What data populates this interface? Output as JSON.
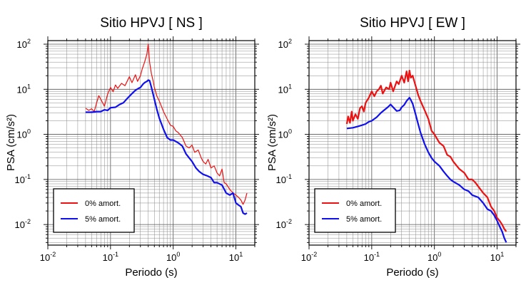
{
  "charts": [
    {
      "title": "Sitio HPVJ [ NS ]",
      "xlabel": "Periodo (s)",
      "ylabel": "PSA (cm/s²)"
    },
    {
      "title": "Sitio HPVJ [ EW ]",
      "xlabel": "Periodo (s)",
      "ylabel": "PSA (cm/s²)"
    }
  ],
  "chart_data": [
    {
      "type": "line",
      "title": "Sitio HPVJ [ NS ]",
      "xlabel": "Periodo (s)",
      "ylabel": "PSA (cm/s²)",
      "xscale": "log",
      "yscale": "log",
      "xlim": [
        0.01,
        20
      ],
      "ylim": [
        0.0035,
        120
      ],
      "grid": true,
      "legend_position": "bottom-left",
      "x_ticks": [
        "10-2",
        "10-1",
        "100",
        "101"
      ],
      "y_ticks": [
        "10-2",
        "10-1",
        "100",
        "101",
        "102"
      ],
      "series": [
        {
          "name": "0% amort.",
          "color": "#ee1111",
          "width": 1.2,
          "x": [
            0.04,
            0.045,
            0.05,
            0.055,
            0.06,
            0.065,
            0.07,
            0.08,
            0.09,
            0.1,
            0.11,
            0.12,
            0.13,
            0.15,
            0.17,
            0.2,
            0.22,
            0.25,
            0.27,
            0.3,
            0.32,
            0.35,
            0.38,
            0.4,
            0.42,
            0.45,
            0.48,
            0.5,
            0.55,
            0.6,
            0.7,
            0.8,
            0.9,
            1.0,
            1.1,
            1.2,
            1.4,
            1.6,
            1.8,
            2.0,
            2.2,
            2.5,
            2.8,
            3.0,
            3.3,
            3.6,
            4.0,
            4.5,
            5.0,
            5.5,
            6.0,
            6.5,
            7.0,
            8.0,
            9.0,
            10.0,
            11.0,
            12.0,
            13.0,
            14.0,
            15.0
          ],
          "y": [
            3.8,
            3.4,
            3.7,
            3.2,
            5.0,
            7.2,
            6.0,
            4.2,
            7.8,
            11.0,
            8.8,
            12.5,
            10.5,
            13.5,
            12.0,
            19.0,
            14.0,
            21.0,
            15.0,
            20.0,
            28.0,
            40.0,
            60.0,
            100.0,
            40.0,
            22.0,
            15.0,
            11.0,
            7.0,
            5.5,
            3.2,
            2.2,
            1.6,
            1.5,
            1.2,
            1.1,
            0.85,
            0.55,
            0.5,
            0.58,
            0.4,
            0.45,
            0.3,
            0.25,
            0.22,
            0.28,
            0.18,
            0.2,
            0.14,
            0.12,
            0.17,
            0.085,
            0.08,
            0.06,
            0.05,
            0.045,
            0.04,
            0.035,
            0.028,
            0.035,
            0.05
          ]
        },
        {
          "name": "5% amort.",
          "color": "#1010ee",
          "width": 2.2,
          "x": [
            0.04,
            0.05,
            0.06,
            0.07,
            0.08,
            0.09,
            0.1,
            0.12,
            0.14,
            0.16,
            0.18,
            0.2,
            0.22,
            0.25,
            0.28,
            0.3,
            0.33,
            0.35,
            0.38,
            0.4,
            0.42,
            0.45,
            0.5,
            0.55,
            0.6,
            0.7,
            0.8,
            0.9,
            1.0,
            1.2,
            1.4,
            1.6,
            1.8,
            2.0,
            2.3,
            2.6,
            3.0,
            3.5,
            4.0,
            4.5,
            5.0,
            6.0,
            7.0,
            8.0,
            9.0,
            10.0,
            11.0,
            12.0,
            13.0,
            14.0,
            15.0
          ],
          "y": [
            3.1,
            3.1,
            3.2,
            3.2,
            3.5,
            3.4,
            3.9,
            4.0,
            4.6,
            5.0,
            6.0,
            7.0,
            8.0,
            9.5,
            10.5,
            11.0,
            13.0,
            14.0,
            15.0,
            16.0,
            15.5,
            11.0,
            6.0,
            3.5,
            2.3,
            1.3,
            0.85,
            0.75,
            0.75,
            0.65,
            0.55,
            0.37,
            0.3,
            0.25,
            0.18,
            0.15,
            0.13,
            0.12,
            0.11,
            0.085,
            0.085,
            0.075,
            0.05,
            0.045,
            0.05,
            0.03,
            0.027,
            0.025,
            0.018,
            0.017,
            0.018
          ]
        }
      ]
    },
    {
      "type": "line",
      "title": "Sitio HPVJ [ EW ]",
      "xlabel": "Periodo (s)",
      "ylabel": "PSA (cm/s²)",
      "xscale": "log",
      "yscale": "log",
      "xlim": [
        0.01,
        20
      ],
      "ylim": [
        0.0035,
        120
      ],
      "grid": true,
      "legend_position": "bottom-left",
      "x_ticks": [
        "10-2",
        "10-1",
        "100",
        "101"
      ],
      "y_ticks": [
        "10-2",
        "10-1",
        "100",
        "101",
        "102"
      ],
      "series": [
        {
          "name": "0% amort.",
          "color": "#ee1111",
          "width": 2.2,
          "x": [
            0.04,
            0.042,
            0.045,
            0.048,
            0.05,
            0.055,
            0.06,
            0.065,
            0.07,
            0.075,
            0.08,
            0.09,
            0.1,
            0.11,
            0.12,
            0.13,
            0.14,
            0.15,
            0.17,
            0.19,
            0.2,
            0.22,
            0.25,
            0.27,
            0.3,
            0.33,
            0.36,
            0.38,
            0.4,
            0.42,
            0.45,
            0.5,
            0.55,
            0.6,
            0.7,
            0.8,
            0.9,
            1.0,
            1.2,
            1.4,
            1.6,
            1.8,
            2.0,
            2.5,
            3.0,
            3.5,
            4.0,
            4.5,
            5.0,
            6.0,
            7.0,
            8.0,
            9.0,
            10.0,
            11.0,
            12.0,
            13.0,
            14.0
          ],
          "y": [
            1.7,
            2.5,
            1.8,
            3.2,
            2.0,
            2.8,
            2.2,
            3.8,
            4.2,
            3.2,
            5.0,
            6.5,
            9.0,
            7.0,
            9.0,
            10.0,
            12.0,
            8.0,
            11.0,
            10.0,
            14.0,
            9.0,
            15.0,
            13.0,
            20.0,
            14.0,
            25.0,
            15.0,
            26.0,
            18.0,
            20.0,
            12.0,
            7.5,
            5.5,
            3.4,
            2.2,
            1.2,
            1.0,
            0.65,
            0.55,
            0.35,
            0.32,
            0.25,
            0.17,
            0.14,
            0.1,
            0.1,
            0.085,
            0.07,
            0.05,
            0.04,
            0.025,
            0.02,
            0.014,
            0.012,
            0.01,
            0.008,
            0.007
          ]
        },
        {
          "name": "5% amort.",
          "color": "#1010ee",
          "width": 2.2,
          "x": [
            0.04,
            0.05,
            0.06,
            0.07,
            0.08,
            0.09,
            0.1,
            0.11,
            0.12,
            0.14,
            0.16,
            0.18,
            0.2,
            0.22,
            0.25,
            0.28,
            0.3,
            0.33,
            0.36,
            0.38,
            0.4,
            0.42,
            0.45,
            0.5,
            0.55,
            0.6,
            0.7,
            0.8,
            0.9,
            1.0,
            1.2,
            1.4,
            1.6,
            1.8,
            2.0,
            2.5,
            3.0,
            3.5,
            4.0,
            5.0,
            6.0,
            7.0,
            8.0,
            9.0,
            10.0,
            11.0,
            12.0,
            13.0,
            14.0
          ],
          "y": [
            1.35,
            1.4,
            1.5,
            1.6,
            1.7,
            1.9,
            2.0,
            2.2,
            2.4,
            3.0,
            3.5,
            4.0,
            4.6,
            4.0,
            3.3,
            3.4,
            4.0,
            4.5,
            5.5,
            6.0,
            6.5,
            5.8,
            4.8,
            2.8,
            1.7,
            1.1,
            0.6,
            0.4,
            0.3,
            0.25,
            0.2,
            0.15,
            0.12,
            0.1,
            0.09,
            0.075,
            0.06,
            0.055,
            0.045,
            0.04,
            0.03,
            0.022,
            0.02,
            0.016,
            0.012,
            0.009,
            0.007,
            0.005,
            0.004
          ]
        }
      ]
    }
  ]
}
